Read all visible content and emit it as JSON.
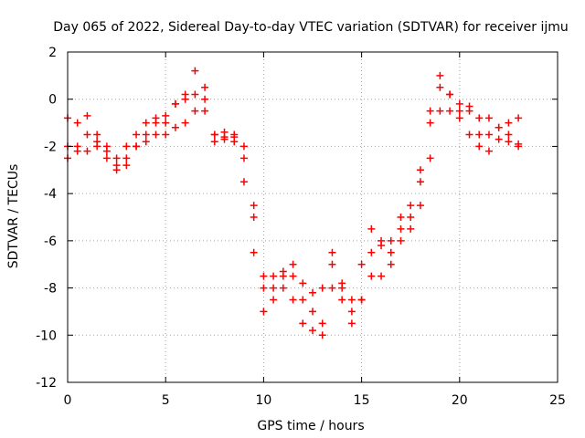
{
  "chart_data": {
    "type": "scatter",
    "title": "Day 065 of 2022, Sidereal Day-to-day VTEC variation (SDTVAR) for receiver ijmu",
    "xlabel": "GPS time / hours",
    "ylabel": "SDTVAR / TECUs",
    "xlim": [
      0,
      25
    ],
    "ylim": [
      -12,
      2
    ],
    "xticks": [
      0,
      5,
      10,
      15,
      20,
      25
    ],
    "yticks": [
      -12,
      -10,
      -8,
      -6,
      -4,
      -2,
      0,
      2
    ],
    "grid": true,
    "marker": "+",
    "colors": {
      "series": "#ff0000",
      "grid": "#a0a0a0",
      "axes": "#000000"
    },
    "series": [
      {
        "x": [
          0.0,
          0.5,
          1.0,
          1.5,
          2.0,
          2.5,
          3.0,
          3.5,
          4.0,
          4.5,
          5.0,
          5.5,
          6.0,
          6.5,
          7.0,
          7.5,
          8.0,
          8.5,
          9.0,
          9.5,
          10.0,
          10.5,
          11.0,
          11.5,
          12.0,
          12.5,
          13.0,
          13.5,
          14.0,
          14.5,
          15.0,
          15.5,
          16.0,
          16.5,
          17.0,
          17.5,
          18.0,
          18.5,
          19.0,
          19.5,
          20.0,
          20.5,
          21.0,
          21.5,
          22.0,
          22.5,
          23.0
        ],
        "y": [
          -0.8,
          -1.0,
          -0.7,
          -1.5,
          -2.0,
          -2.5,
          -2.0,
          -1.5,
          -1.0,
          -0.8,
          -0.7,
          -0.2,
          0.0,
          0.2,
          0.0,
          -1.5,
          -1.6,
          -1.6,
          -2.5,
          -4.5,
          -7.5,
          -7.5,
          -7.3,
          -7.0,
          -7.8,
          -8.2,
          -8.0,
          -7.0,
          -7.8,
          -8.5,
          -7.0,
          -5.5,
          -6.0,
          -6.5,
          -5.5,
          -5.0,
          -3.5,
          -1.0,
          0.5,
          -0.5,
          -0.5,
          -0.3,
          -1.5,
          -0.8,
          -1.2,
          -1.0,
          -0.8
        ]
      },
      {
        "x": [
          0.0,
          0.5,
          1.0,
          1.5,
          2.0,
          2.5,
          3.0,
          3.5,
          4.0,
          4.5,
          5.0,
          5.5,
          6.0,
          6.5,
          7.0,
          7.5,
          8.0,
          8.5,
          9.0,
          9.5,
          10.0,
          10.5,
          11.0,
          11.5,
          12.0,
          12.5,
          13.0,
          13.5,
          14.0,
          14.5,
          15.0,
          15.5,
          16.0,
          16.5,
          17.0,
          17.5,
          18.0,
          18.5,
          19.0,
          19.5,
          20.0,
          20.5,
          21.0,
          21.5,
          22.0,
          22.5,
          23.0
        ],
        "y": [
          -2.0,
          -2.0,
          -2.2,
          -2.0,
          -2.5,
          -3.0,
          -2.5,
          -2.0,
          -1.8,
          -1.5,
          -1.5,
          -1.2,
          -1.0,
          -0.5,
          -0.5,
          -1.8,
          -1.7,
          -1.8,
          -3.5,
          -6.5,
          -9.0,
          -8.5,
          -8.0,
          -8.5,
          -9.5,
          -9.8,
          -10.0,
          -8.0,
          -8.5,
          -9.5,
          -8.5,
          -7.5,
          -7.5,
          -7.0,
          -6.0,
          -5.5,
          -4.5,
          -2.5,
          -0.5,
          0.2,
          -0.8,
          -1.5,
          -2.0,
          -2.2,
          -1.7,
          -1.8,
          -2.0
        ]
      },
      {
        "x": [
          0.0,
          0.5,
          1.0,
          1.5,
          2.0,
          2.5,
          3.0,
          3.5,
          4.0,
          4.5,
          5.0,
          5.5,
          6.0,
          6.5,
          7.0,
          7.5,
          8.0,
          8.5,
          9.0,
          9.5,
          10.0,
          10.5,
          11.0,
          11.5,
          12.0,
          12.5,
          13.0,
          13.5,
          14.0,
          14.5,
          15.0,
          15.5,
          16.0,
          16.5,
          17.0,
          17.5,
          18.0,
          18.5,
          19.0,
          19.5,
          20.0,
          20.5,
          21.0,
          21.5,
          22.0,
          22.5,
          23.0
        ],
        "y": [
          -2.5,
          -2.2,
          -1.5,
          -1.8,
          -2.2,
          -2.8,
          -2.8,
          -2.0,
          -1.5,
          -1.0,
          -1.0,
          -0.2,
          0.2,
          1.2,
          0.5,
          -1.5,
          -1.4,
          -1.5,
          -2.0,
          -5.0,
          -8.0,
          -8.0,
          -7.5,
          -7.5,
          -8.5,
          -9.0,
          -9.5,
          -6.5,
          -8.0,
          -9.0,
          -8.5,
          -6.5,
          -6.2,
          -6.0,
          -5.0,
          -4.5,
          -3.0,
          -0.5,
          1.0,
          0.2,
          -0.2,
          -0.5,
          -0.8,
          -1.5,
          -1.2,
          -1.5,
          -1.9
        ]
      }
    ]
  }
}
